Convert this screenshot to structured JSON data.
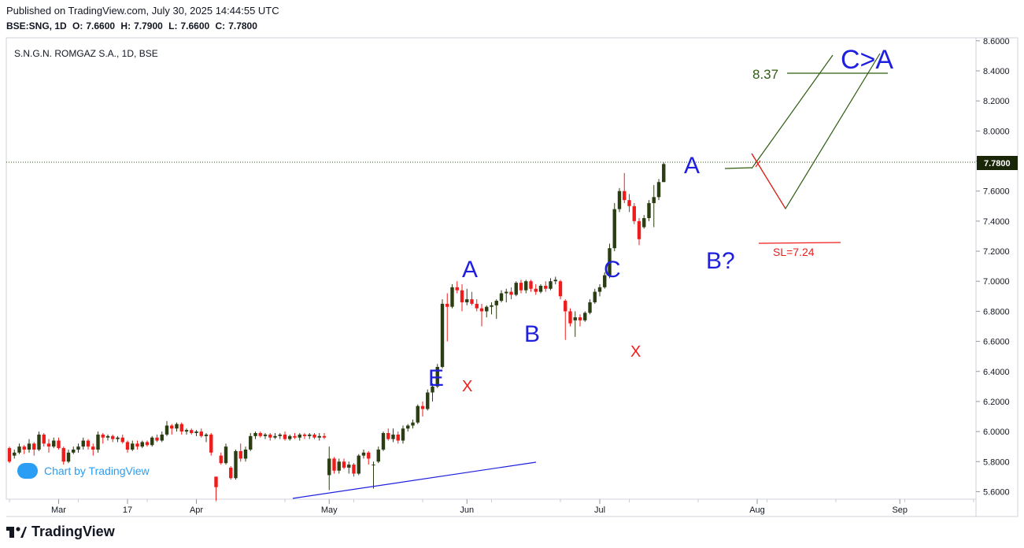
{
  "header": {
    "published": "Published on TradingView.com, July 30, 2025 14:44:55 UTC",
    "symbol": "BSE:SNG, 1D",
    "o_label": "O:",
    "o": "7.6600",
    "h_label": "H:",
    "h": "7.7900",
    "l_label": "L:",
    "l": "7.6600",
    "c_label": "C:",
    "c": "7.7800"
  },
  "chart_title": "S.N.G.N. ROMGAZ S.A., 1D, BSE",
  "badge_text": "Chart by TradingView",
  "footer_brand": "TradingView",
  "colors": {
    "up": "#2b3d12",
    "down": "#ef1c1c",
    "wave_blue": "#1f1fdf",
    "wave_red": "#ef1c1c",
    "green_line": "#2f5d0f",
    "trend": "#1f1fdf"
  },
  "chart_data": {
    "type": "candlestick",
    "ylim": [
      5.55,
      8.62
    ],
    "price_ticks": [
      "8.6000",
      "8.4000",
      "8.2000",
      "8.0000",
      "7.8000",
      "7.6000",
      "7.4000",
      "7.2000",
      "7.0000",
      "6.8000",
      "6.6000",
      "6.4000",
      "6.2000",
      "6.0000",
      "5.8000",
      "5.6000"
    ],
    "date_ticks": [
      {
        "label": "Mar",
        "index": 10
      },
      {
        "label": "17",
        "index": 24
      },
      {
        "label": "Apr",
        "index": 38
      },
      {
        "label": "May",
        "index": 65
      },
      {
        "label": "Jun",
        "index": 93
      },
      {
        "label": "Jul",
        "index": 120
      },
      {
        "label": "Aug",
        "index": 152
      },
      {
        "label": "Sep",
        "index": 181
      }
    ],
    "last_price": "7.7800",
    "candles": [
      [
        5.89,
        5.9,
        5.79,
        5.8
      ],
      [
        5.84,
        5.88,
        5.82,
        5.86
      ],
      [
        5.86,
        5.92,
        5.85,
        5.9
      ],
      [
        5.9,
        5.91,
        5.85,
        5.88
      ],
      [
        5.88,
        5.95,
        5.86,
        5.92
      ],
      [
        5.92,
        5.93,
        5.84,
        5.88
      ],
      [
        5.88,
        6.0,
        5.87,
        5.98
      ],
      [
        5.98,
        5.99,
        5.9,
        5.92
      ],
      [
        5.92,
        5.95,
        5.86,
        5.9
      ],
      [
        5.9,
        5.96,
        5.89,
        5.94
      ],
      [
        5.94,
        5.96,
        5.88,
        5.89
      ],
      [
        5.89,
        5.9,
        5.78,
        5.8
      ],
      [
        5.8,
        5.88,
        5.79,
        5.86
      ],
      [
        5.86,
        5.9,
        5.85,
        5.88
      ],
      [
        5.88,
        5.92,
        5.86,
        5.9
      ],
      [
        5.9,
        5.96,
        5.88,
        5.94
      ],
      [
        5.94,
        5.95,
        5.88,
        5.9
      ],
      [
        5.9,
        5.92,
        5.84,
        5.88
      ],
      [
        5.88,
        6.0,
        5.86,
        5.98
      ],
      [
        5.98,
        5.99,
        5.92,
        5.96
      ],
      [
        5.96,
        5.98,
        5.94,
        5.97
      ],
      [
        5.97,
        5.98,
        5.93,
        5.95
      ],
      [
        5.95,
        5.97,
        5.93,
        5.96
      ],
      [
        5.96,
        5.98,
        5.92,
        5.93
      ],
      [
        5.93,
        5.94,
        5.86,
        5.88
      ],
      [
        5.88,
        5.94,
        5.87,
        5.92
      ],
      [
        5.92,
        5.94,
        5.88,
        5.9
      ],
      [
        5.9,
        5.94,
        5.89,
        5.93
      ],
      [
        5.93,
        5.94,
        5.9,
        5.91
      ],
      [
        5.91,
        5.97,
        5.9,
        5.96
      ],
      [
        5.96,
        5.98,
        5.93,
        5.94
      ],
      [
        5.94,
        6.0,
        5.93,
        5.98
      ],
      [
        5.98,
        6.07,
        5.97,
        6.04
      ],
      [
        6.04,
        6.05,
        5.98,
        6.02
      ],
      [
        6.02,
        6.06,
        6.0,
        6.05
      ],
      [
        6.05,
        6.06,
        5.98,
        6.0
      ],
      [
        6.0,
        6.02,
        5.98,
        6.01
      ],
      [
        6.01,
        6.02,
        5.98,
        5.99
      ],
      [
        5.99,
        6.01,
        5.97,
        6.0
      ],
      [
        6.0,
        6.02,
        5.96,
        5.97
      ],
      [
        5.97,
        5.99,
        5.93,
        5.98
      ],
      [
        5.98,
        5.99,
        5.84,
        5.86
      ],
      [
        5.7,
        5.7,
        5.54,
        5.63
      ],
      [
        5.84,
        5.86,
        5.78,
        5.79
      ],
      [
        5.79,
        5.92,
        5.78,
        5.9
      ],
      [
        5.76,
        5.77,
        5.68,
        5.69
      ],
      [
        5.69,
        5.88,
        5.68,
        5.87
      ],
      [
        5.87,
        5.92,
        5.8,
        5.82
      ],
      [
        5.82,
        5.9,
        5.8,
        5.88
      ],
      [
        5.88,
        5.99,
        5.87,
        5.97
      ],
      [
        5.97,
        6.0,
        5.95,
        5.99
      ],
      [
        5.99,
        6.0,
        5.96,
        5.97
      ],
      [
        5.97,
        5.99,
        5.95,
        5.98
      ],
      [
        5.98,
        5.99,
        5.94,
        5.96
      ],
      [
        5.96,
        5.99,
        5.95,
        5.97
      ],
      [
        5.97,
        5.99,
        5.95,
        5.98
      ],
      [
        5.98,
        6.0,
        5.94,
        5.95
      ],
      [
        5.95,
        5.98,
        5.94,
        5.97
      ],
      [
        5.97,
        5.99,
        5.95,
        5.96
      ],
      [
        5.96,
        5.99,
        5.94,
        5.98
      ],
      [
        5.98,
        5.99,
        5.95,
        5.97
      ],
      [
        5.97,
        5.99,
        5.95,
        5.98
      ],
      [
        5.98,
        5.99,
        5.95,
        5.96
      ],
      [
        5.96,
        5.99,
        5.94,
        5.97
      ],
      [
        5.97,
        5.99,
        5.95,
        5.96
      ],
      [
        5.71,
        5.9,
        5.61,
        5.82
      ],
      [
        5.82,
        5.83,
        5.72,
        5.74
      ],
      [
        5.74,
        5.82,
        5.72,
        5.8
      ],
      [
        5.8,
        5.82,
        5.75,
        5.76
      ],
      [
        5.76,
        5.8,
        5.72,
        5.78
      ],
      [
        5.78,
        5.79,
        5.7,
        5.72
      ],
      [
        5.72,
        5.85,
        5.71,
        5.84
      ],
      [
        5.84,
        5.88,
        5.82,
        5.86
      ],
      [
        5.86,
        5.87,
        5.78,
        5.82
      ],
      [
        5.78,
        5.8,
        5.62,
        5.78
      ],
      [
        5.8,
        5.9,
        5.79,
        5.88
      ],
      [
        5.88,
        6.0,
        5.87,
        5.99
      ],
      [
        5.99,
        6.02,
        5.94,
        5.95
      ],
      [
        5.95,
        6.02,
        5.93,
        5.98
      ],
      [
        5.98,
        6.0,
        5.92,
        5.94
      ],
      [
        5.94,
        6.04,
        5.92,
        6.02
      ],
      [
        6.02,
        6.05,
        6.0,
        6.04
      ],
      [
        6.04,
        6.08,
        6.02,
        6.06
      ],
      [
        6.06,
        6.18,
        6.05,
        6.17
      ],
      [
        6.17,
        6.2,
        6.1,
        6.15
      ],
      [
        6.15,
        6.28,
        6.14,
        6.26
      ],
      [
        6.26,
        6.32,
        6.2,
        6.3
      ],
      [
        6.3,
        6.45,
        6.29,
        6.43
      ],
      [
        6.43,
        6.88,
        6.42,
        6.85
      ],
      [
        6.85,
        6.92,
        6.6,
        6.83
      ],
      [
        6.83,
        6.98,
        6.82,
        6.96
      ],
      [
        6.96,
        7.0,
        6.92,
        6.94
      ],
      [
        6.94,
        6.98,
        6.8,
        6.86
      ],
      [
        6.86,
        6.95,
        6.84,
        6.88
      ],
      [
        6.88,
        6.93,
        6.84,
        6.85
      ],
      [
        6.85,
        6.88,
        6.8,
        6.82
      ],
      [
        6.82,
        6.85,
        6.7,
        6.8
      ],
      [
        6.8,
        6.84,
        6.76,
        6.83
      ],
      [
        6.83,
        6.86,
        6.78,
        6.84
      ],
      [
        6.84,
        6.88,
        6.75,
        6.87
      ],
      [
        6.87,
        6.94,
        6.86,
        6.92
      ],
      [
        6.92,
        6.95,
        6.86,
        6.93
      ],
      [
        6.93,
        6.96,
        6.88,
        6.91
      ],
      [
        6.91,
        7.0,
        6.9,
        6.99
      ],
      [
        6.99,
        7.01,
        6.92,
        6.94
      ],
      [
        6.94,
        7.01,
        6.92,
        7.0
      ],
      [
        7.0,
        7.01,
        6.93,
        6.95
      ],
      [
        6.95,
        6.98,
        6.91,
        6.93
      ],
      [
        6.93,
        6.98,
        6.92,
        6.97
      ],
      [
        6.97,
        7.0,
        6.93,
        6.95
      ],
      [
        6.95,
        7.02,
        6.94,
        7.0
      ],
      [
        7.0,
        7.03,
        6.98,
        7.01
      ],
      [
        7.0,
        7.01,
        6.88,
        6.9
      ],
      [
        6.87,
        6.88,
        6.61,
        6.8
      ],
      [
        6.8,
        6.82,
        6.7,
        6.72
      ],
      [
        6.74,
        6.8,
        6.63,
        6.76
      ],
      [
        6.76,
        6.78,
        6.7,
        6.74
      ],
      [
        6.74,
        6.8,
        6.73,
        6.79
      ],
      [
        6.79,
        6.88,
        6.78,
        6.86
      ],
      [
        6.86,
        6.95,
        6.85,
        6.93
      ],
      [
        6.93,
        6.98,
        6.9,
        6.96
      ],
      [
        6.96,
        7.06,
        6.95,
        7.04
      ],
      [
        7.04,
        7.25,
        7.02,
        7.22
      ],
      [
        7.22,
        7.52,
        7.2,
        7.48
      ],
      [
        7.48,
        7.62,
        7.46,
        7.6
      ],
      [
        7.6,
        7.72,
        7.52,
        7.54
      ],
      [
        7.54,
        7.58,
        7.46,
        7.5
      ],
      [
        7.5,
        7.52,
        7.38,
        7.4
      ],
      [
        7.4,
        7.42,
        7.24,
        7.28
      ],
      [
        7.36,
        7.44,
        7.35,
        7.42
      ],
      [
        7.42,
        7.54,
        7.4,
        7.52
      ],
      [
        7.52,
        7.64,
        7.36,
        7.56
      ],
      [
        7.56,
        7.68,
        7.54,
        7.66
      ],
      [
        7.66,
        7.79,
        7.66,
        7.78
      ]
    ],
    "annotations": {
      "waves_blue": [
        "A",
        "B",
        "C",
        "E",
        "A",
        "B?",
        "C>A"
      ],
      "waves_red": [
        "X",
        "X"
      ],
      "target_label": "8.37",
      "sl_label": "SL=7.24"
    }
  }
}
